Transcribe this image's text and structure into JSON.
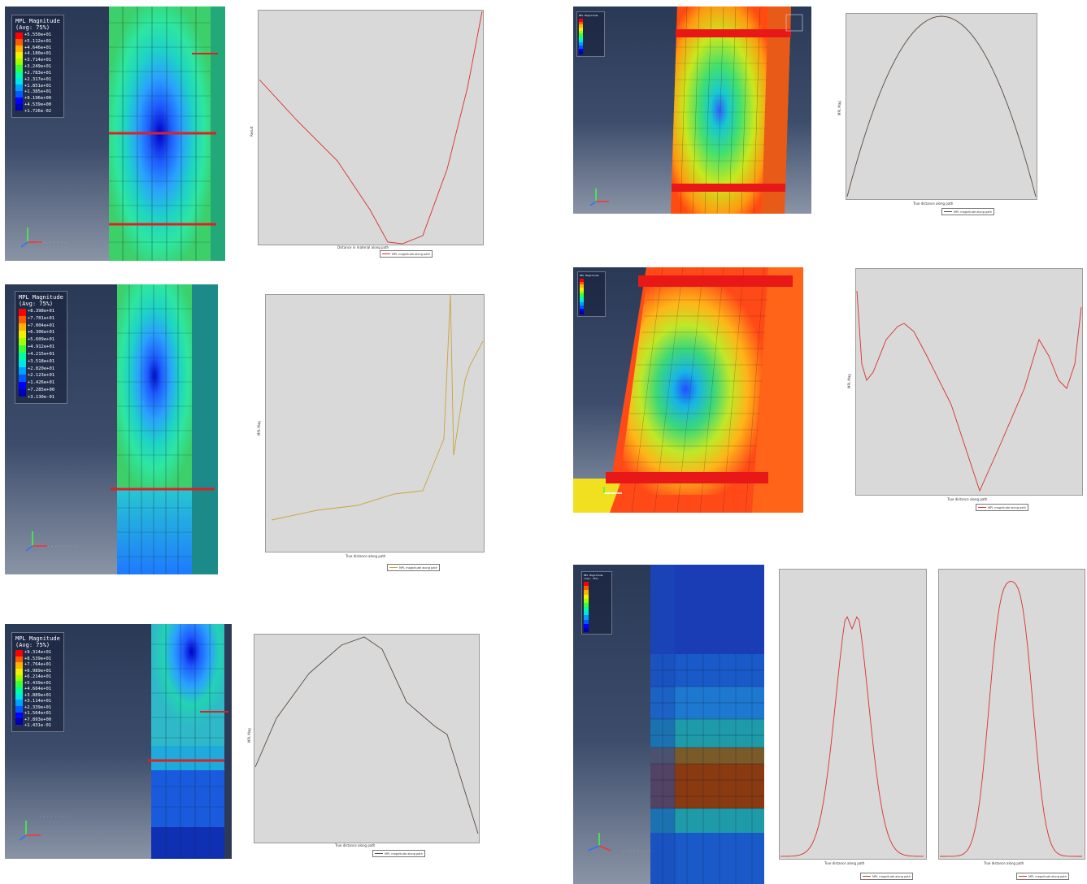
{
  "colors": {
    "contour_scale": [
      "#ff0000",
      "#ff5a00",
      "#ffb400",
      "#f0f000",
      "#a0ff00",
      "#3cff3c",
      "#00ffa0",
      "#00e6e6",
      "#00a0ff",
      "#005aff",
      "#0000ff",
      "#0000b4"
    ],
    "curve_red": "#d9302b",
    "curve_gold": "#c9a33a",
    "curve_dark": "#5a4a40",
    "plot_bg": "#d9d9d9"
  },
  "panels": [
    {
      "id": "a",
      "legend_title": [
        "MPL Magnitude",
        "(Avg: 75%)"
      ],
      "legend_values": [
        "+5.550e+01",
        "+5.112e+01",
        "+4.646e+01",
        "+4.180e+01",
        "+3.714e+01",
        "+3.249e+01",
        "+2.783e+01",
        "+2.317e+01",
        "+1.851e+01",
        "+1.385e+01",
        "+9.196e+00",
        "+4.539e+00",
        "+1.726e-02"
      ],
      "triad_labels": [
        "Y",
        "Z",
        "X"
      ]
    },
    {
      "id": "b",
      "legend_title": [
        "MPL Magnitude",
        "(Avg: 75%)"
      ],
      "legend_values": [
        "+8.398e+01",
        "+7.701e+01",
        "+7.004e+01",
        "+6.306e+01",
        "+5.609e+01",
        "+4.912e+01",
        "+4.215e+01",
        "+3.518e+01",
        "+2.820e+01",
        "+2.123e+01",
        "+1.426e+01",
        "+7.285e+00",
        "+3.130e-01"
      ],
      "triad_labels": [
        "Y",
        "Z",
        "X"
      ]
    },
    {
      "id": "c",
      "legend_title": [
        "MPL Magnitude",
        "(Avg: 75%)"
      ],
      "legend_values": [
        "+9.314e+01",
        "+8.539e+01",
        "+7.764e+01",
        "+6.989e+01",
        "+6.214e+01",
        "+5.439e+01",
        "+4.664e+01",
        "+3.889e+01",
        "+3.114e+01",
        "+2.339e+01",
        "+1.564e+01",
        "+7.893e+00",
        "+1.431e-01"
      ],
      "triad_labels": [
        "Y",
        "Z",
        "X"
      ]
    },
    {
      "id": "d",
      "legend_title": [
        "MPL Magnitude",
        "(Avg: 75%)"
      ],
      "legend_values": [],
      "triad_labels": [
        "Y",
        "Z",
        "X"
      ]
    },
    {
      "id": "e",
      "legend_title": [
        "MPL Magnitude",
        "(Avg: 75%)"
      ],
      "legend_values": [],
      "triad_labels": [
        "Y",
        "Z",
        "X"
      ]
    },
    {
      "id": "f",
      "legend_title": [
        "MPL Magnitude",
        "(Avg: 75%)"
      ],
      "legend_values": [],
      "triad_labels": [
        "Y",
        "Z",
        "X"
      ]
    }
  ],
  "plots": [
    {
      "id": "p1",
      "xlabel": "Distance in material along path",
      "ylabel": "Result",
      "legend": "MPL magnitude along path"
    },
    {
      "id": "p2",
      "xlabel": "True distance along path",
      "ylabel": "MPL Mag",
      "legend": "MPL magnitude along path"
    },
    {
      "id": "p3",
      "xlabel": "True distance along path",
      "ylabel": "MPL Mag",
      "legend": "MPL magnitude along path"
    },
    {
      "id": "p4",
      "xlabel": "True distance along path",
      "ylabel": "MPL Mag",
      "legend": "MPL magnitude along path"
    },
    {
      "id": "p5",
      "xlabel": "True distance along path",
      "ylabel": "MPL Mag",
      "legend": "MPL magnitude along path"
    },
    {
      "id": "p6",
      "xlabel": "True distance along path",
      "ylabel": "MPL Mag",
      "legend": "MPL magnitude along path"
    },
    {
      "id": "p7",
      "xlabel": "True distance along path",
      "ylabel": "MPL Mag",
      "legend": "MPL magnitude along path"
    }
  ]
}
